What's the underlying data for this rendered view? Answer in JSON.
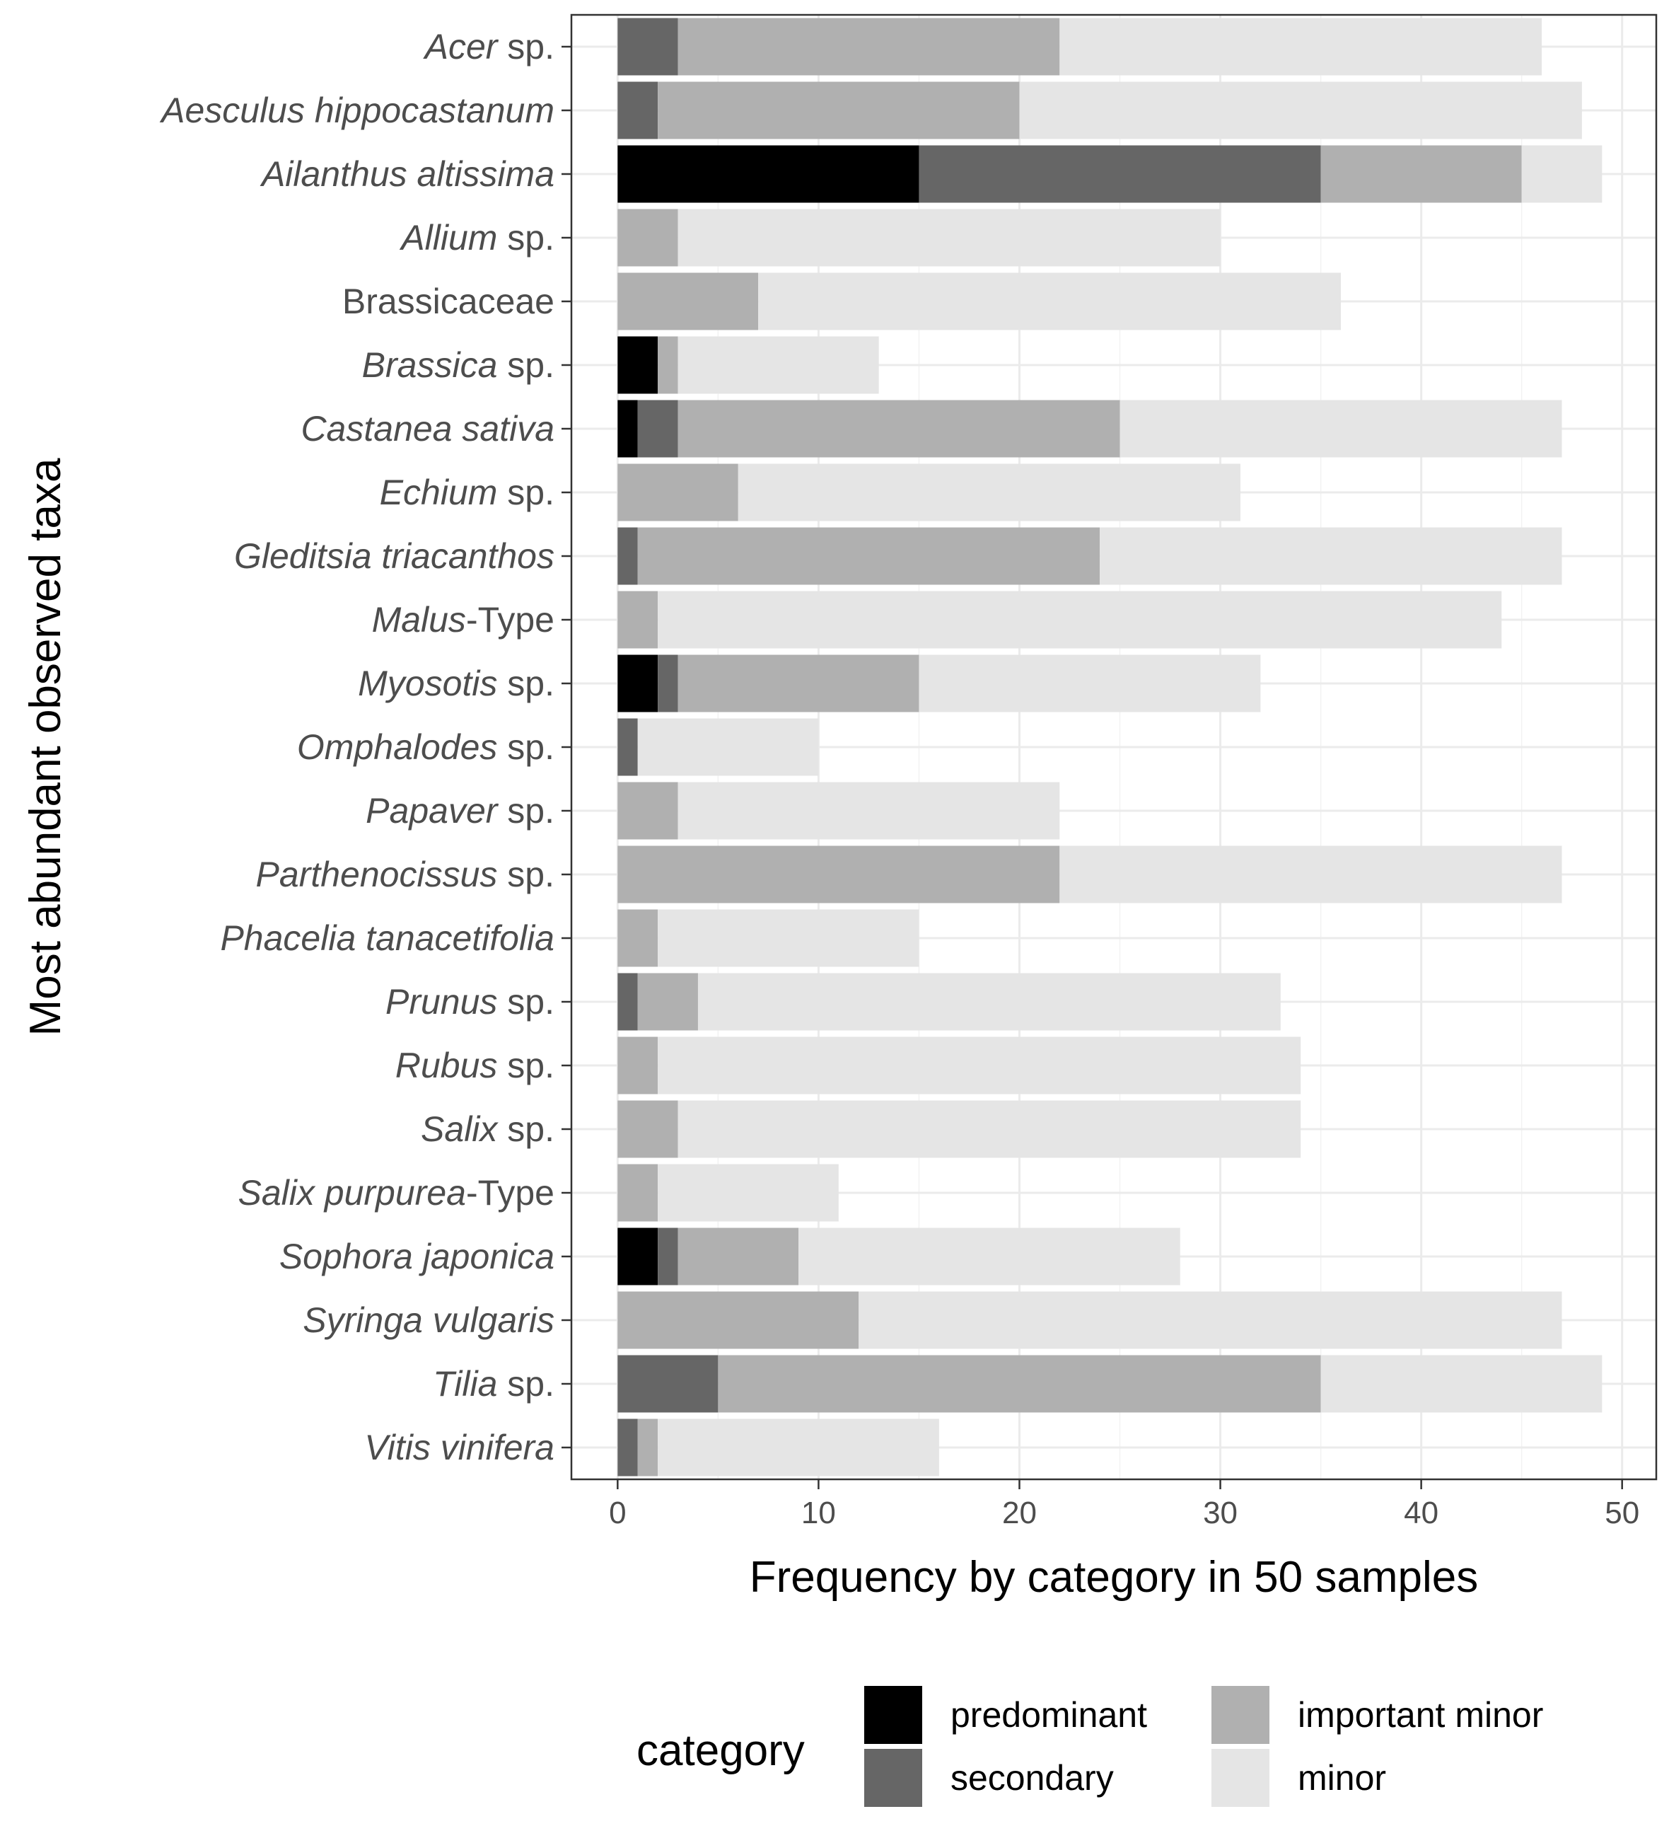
{
  "chart_data": {
    "type": "bar",
    "orientation": "horizontal",
    "stacked": true,
    "xlabel": "Frequency by category in 50 samples",
    "ylabel": "Most abundant observed taxa",
    "xlim": [
      -2.3,
      51.7
    ],
    "x_ticks": [
      0,
      10,
      20,
      30,
      40,
      50
    ],
    "grid": true,
    "legend": {
      "title": "category",
      "position": "bottom",
      "entries": [
        {
          "key": "predominant",
          "label": "predominant",
          "color": "#000000"
        },
        {
          "key": "secondary",
          "label": "secondary",
          "color": "#666666"
        },
        {
          "key": "important_minor",
          "label": "important minor",
          "color": "#b0b0b0"
        },
        {
          "key": "minor",
          "label": "minor",
          "color": "#e5e5e5"
        }
      ]
    },
    "categories": [
      {
        "parts": [
          {
            "text": "Acer",
            "italic": true
          },
          {
            "text": " sp.",
            "italic": false
          }
        ]
      },
      {
        "parts": [
          {
            "text": "Aesculus hippocastanum",
            "italic": true
          }
        ]
      },
      {
        "parts": [
          {
            "text": "Ailanthus altissima",
            "italic": true
          }
        ]
      },
      {
        "parts": [
          {
            "text": "Allium",
            "italic": true
          },
          {
            "text": " sp.",
            "italic": false
          }
        ]
      },
      {
        "parts": [
          {
            "text": "Brassicaceae",
            "italic": false
          }
        ]
      },
      {
        "parts": [
          {
            "text": "Brassica",
            "italic": true
          },
          {
            "text": " sp.",
            "italic": false
          }
        ]
      },
      {
        "parts": [
          {
            "text": "Castanea sativa",
            "italic": true
          }
        ]
      },
      {
        "parts": [
          {
            "text": "Echium",
            "italic": true
          },
          {
            "text": " sp.",
            "italic": false
          }
        ]
      },
      {
        "parts": [
          {
            "text": "Gleditsia triacanthos",
            "italic": true
          }
        ]
      },
      {
        "parts": [
          {
            "text": "Malus",
            "italic": true
          },
          {
            "text": "-Type",
            "italic": false
          }
        ]
      },
      {
        "parts": [
          {
            "text": "Myosotis",
            "italic": true
          },
          {
            "text": " sp.",
            "italic": false
          }
        ]
      },
      {
        "parts": [
          {
            "text": "Omphalodes",
            "italic": true
          },
          {
            "text": " sp.",
            "italic": false
          }
        ]
      },
      {
        "parts": [
          {
            "text": "Papaver",
            "italic": true
          },
          {
            "text": " sp.",
            "italic": false
          }
        ]
      },
      {
        "parts": [
          {
            "text": "Parthenocissus",
            "italic": true
          },
          {
            "text": " sp.",
            "italic": false
          }
        ]
      },
      {
        "parts": [
          {
            "text": "Phacelia tanacetifolia",
            "italic": true
          }
        ]
      },
      {
        "parts": [
          {
            "text": "Prunus",
            "italic": true
          },
          {
            "text": " sp.",
            "italic": false
          }
        ]
      },
      {
        "parts": [
          {
            "text": "Rubus",
            "italic": true
          },
          {
            "text": " sp.",
            "italic": false
          }
        ]
      },
      {
        "parts": [
          {
            "text": "Salix",
            "italic": true
          },
          {
            "text": " sp.",
            "italic": false
          }
        ]
      },
      {
        "parts": [
          {
            "text": "Salix purpurea",
            "italic": true
          },
          {
            "text": "-Type",
            "italic": false
          }
        ]
      },
      {
        "parts": [
          {
            "text": "Sophora japonica",
            "italic": true
          }
        ]
      },
      {
        "parts": [
          {
            "text": "Syringa vulgaris",
            "italic": true
          }
        ]
      },
      {
        "parts": [
          {
            "text": "Tilia",
            "italic": true
          },
          {
            "text": " sp.",
            "italic": false
          }
        ]
      },
      {
        "parts": [
          {
            "text": "Vitis vinifera",
            "italic": true
          }
        ]
      }
    ],
    "series": [
      {
        "name": "predominant",
        "color": "#000000",
        "values": [
          0,
          0,
          15,
          0,
          0,
          2,
          1,
          0,
          0,
          0,
          2,
          0,
          0,
          0,
          0,
          0,
          0,
          0,
          0,
          2,
          0,
          0,
          0
        ]
      },
      {
        "name": "secondary",
        "color": "#666666",
        "values": [
          3,
          2,
          20,
          0,
          0,
          0,
          2,
          0,
          1,
          0,
          1,
          1,
          0,
          0,
          0,
          1,
          0,
          0,
          0,
          1,
          0,
          5,
          1
        ]
      },
      {
        "name": "important minor",
        "color": "#b0b0b0",
        "values": [
          19,
          18,
          10,
          3,
          7,
          1,
          22,
          6,
          23,
          2,
          12,
          0,
          3,
          22,
          2,
          3,
          2,
          3,
          2,
          6,
          12,
          30,
          1
        ]
      },
      {
        "name": "minor",
        "color": "#e5e5e5",
        "values": [
          24,
          28,
          4,
          27,
          29,
          10,
          22,
          25,
          23,
          42,
          17,
          9,
          19,
          25,
          13,
          29,
          32,
          31,
          9,
          19,
          35,
          14,
          14
        ]
      }
    ]
  }
}
